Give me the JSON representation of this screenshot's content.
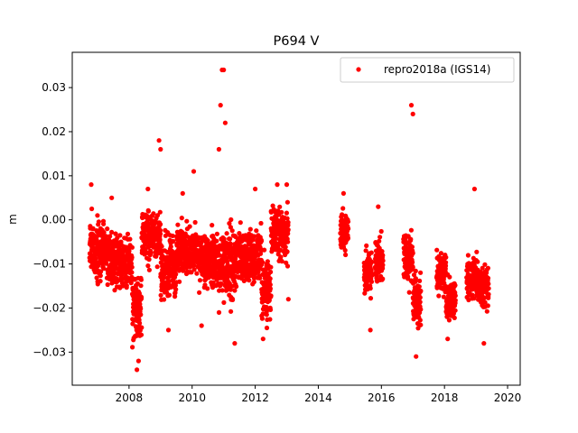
{
  "chart_data": {
    "type": "scatter",
    "title": "P694 V",
    "xlabel": "",
    "ylabel": "m",
    "xlim": [
      2006.2,
      2020.4
    ],
    "ylim": [
      -0.0375,
      0.038
    ],
    "x_ticks": [
      2008,
      2010,
      2012,
      2014,
      2016,
      2018,
      2020
    ],
    "y_ticks": [
      -0.03,
      -0.02,
      -0.01,
      0.0,
      0.01,
      0.02,
      0.03
    ],
    "y_tick_labels": [
      "−0.03",
      "−0.02",
      "−0.01",
      "0.00",
      "0.01",
      "0.02",
      "0.03"
    ],
    "grid": false,
    "legend_position": "top-right",
    "series": [
      {
        "name": "repro2018a (IGS14)",
        "color": "#ff0000",
        "marker": "circle",
        "segments": [
          {
            "x_start": 2006.75,
            "x_end": 2007.4,
            "center": -0.007,
            "spread": 0.006
          },
          {
            "x_start": 2007.4,
            "x_end": 2008.1,
            "center": -0.009,
            "spread": 0.005
          },
          {
            "x_start": 2008.1,
            "x_end": 2008.4,
            "center": -0.02,
            "spread": 0.007
          },
          {
            "x_start": 2008.4,
            "x_end": 2009.0,
            "center": -0.004,
            "spread": 0.005
          },
          {
            "x_start": 2009.0,
            "x_end": 2009.5,
            "center": -0.011,
            "spread": 0.006
          },
          {
            "x_start": 2009.5,
            "x_end": 2010.2,
            "center": -0.007,
            "spread": 0.005
          },
          {
            "x_start": 2010.2,
            "x_end": 2010.8,
            "center": -0.009,
            "spread": 0.005
          },
          {
            "x_start": 2010.8,
            "x_end": 2011.4,
            "center": -0.01,
            "spread": 0.007
          },
          {
            "x_start": 2011.4,
            "x_end": 2012.2,
            "center": -0.008,
            "spread": 0.005
          },
          {
            "x_start": 2012.2,
            "x_end": 2012.5,
            "center": -0.015,
            "spread": 0.006
          },
          {
            "x_start": 2012.5,
            "x_end": 2013.05,
            "center": -0.003,
            "spread": 0.005
          },
          {
            "x_start": 2014.7,
            "x_end": 2014.95,
            "center": -0.003,
            "spread": 0.004
          },
          {
            "x_start": 2015.45,
            "x_end": 2015.7,
            "center": -0.012,
            "spread": 0.004
          },
          {
            "x_start": 2015.8,
            "x_end": 2016.05,
            "center": -0.009,
            "spread": 0.004
          },
          {
            "x_start": 2016.7,
            "x_end": 2017.0,
            "center": -0.009,
            "spread": 0.005
          },
          {
            "x_start": 2017.0,
            "x_end": 2017.25,
            "center": -0.018,
            "spread": 0.005
          },
          {
            "x_start": 2017.75,
            "x_end": 2018.05,
            "center": -0.012,
            "spread": 0.004
          },
          {
            "x_start": 2018.05,
            "x_end": 2018.35,
            "center": -0.018,
            "spread": 0.004
          },
          {
            "x_start": 2018.7,
            "x_end": 2019.05,
            "center": -0.013,
            "spread": 0.004
          },
          {
            "x_start": 2019.05,
            "x_end": 2019.4,
            "center": -0.015,
            "spread": 0.004
          }
        ],
        "outliers": [
          [
            2006.8,
            0.008
          ],
          [
            2007.0,
            0.001
          ],
          [
            2007.45,
            0.005
          ],
          [
            2008.25,
            -0.034
          ],
          [
            2008.3,
            -0.032
          ],
          [
            2008.6,
            0.007
          ],
          [
            2008.95,
            0.018
          ],
          [
            2009.0,
            0.016
          ],
          [
            2009.25,
            -0.025
          ],
          [
            2009.7,
            0.006
          ],
          [
            2010.05,
            0.011
          ],
          [
            2010.3,
            -0.024
          ],
          [
            2010.85,
            0.016
          ],
          [
            2010.9,
            0.026
          ],
          [
            2010.95,
            0.034
          ],
          [
            2011.0,
            0.034
          ],
          [
            2011.05,
            0.022
          ],
          [
            2011.35,
            -0.028
          ],
          [
            2012.0,
            0.007
          ],
          [
            2012.25,
            -0.027
          ],
          [
            2012.7,
            0.008
          ],
          [
            2013.0,
            0.008
          ],
          [
            2013.05,
            -0.018
          ],
          [
            2014.8,
            0.006
          ],
          [
            2015.65,
            -0.025
          ],
          [
            2015.9,
            0.003
          ],
          [
            2016.95,
            0.026
          ],
          [
            2017.0,
            0.024
          ],
          [
            2017.1,
            -0.031
          ],
          [
            2018.1,
            -0.027
          ],
          [
            2018.95,
            0.007
          ],
          [
            2019.25,
            -0.028
          ]
        ]
      }
    ]
  }
}
